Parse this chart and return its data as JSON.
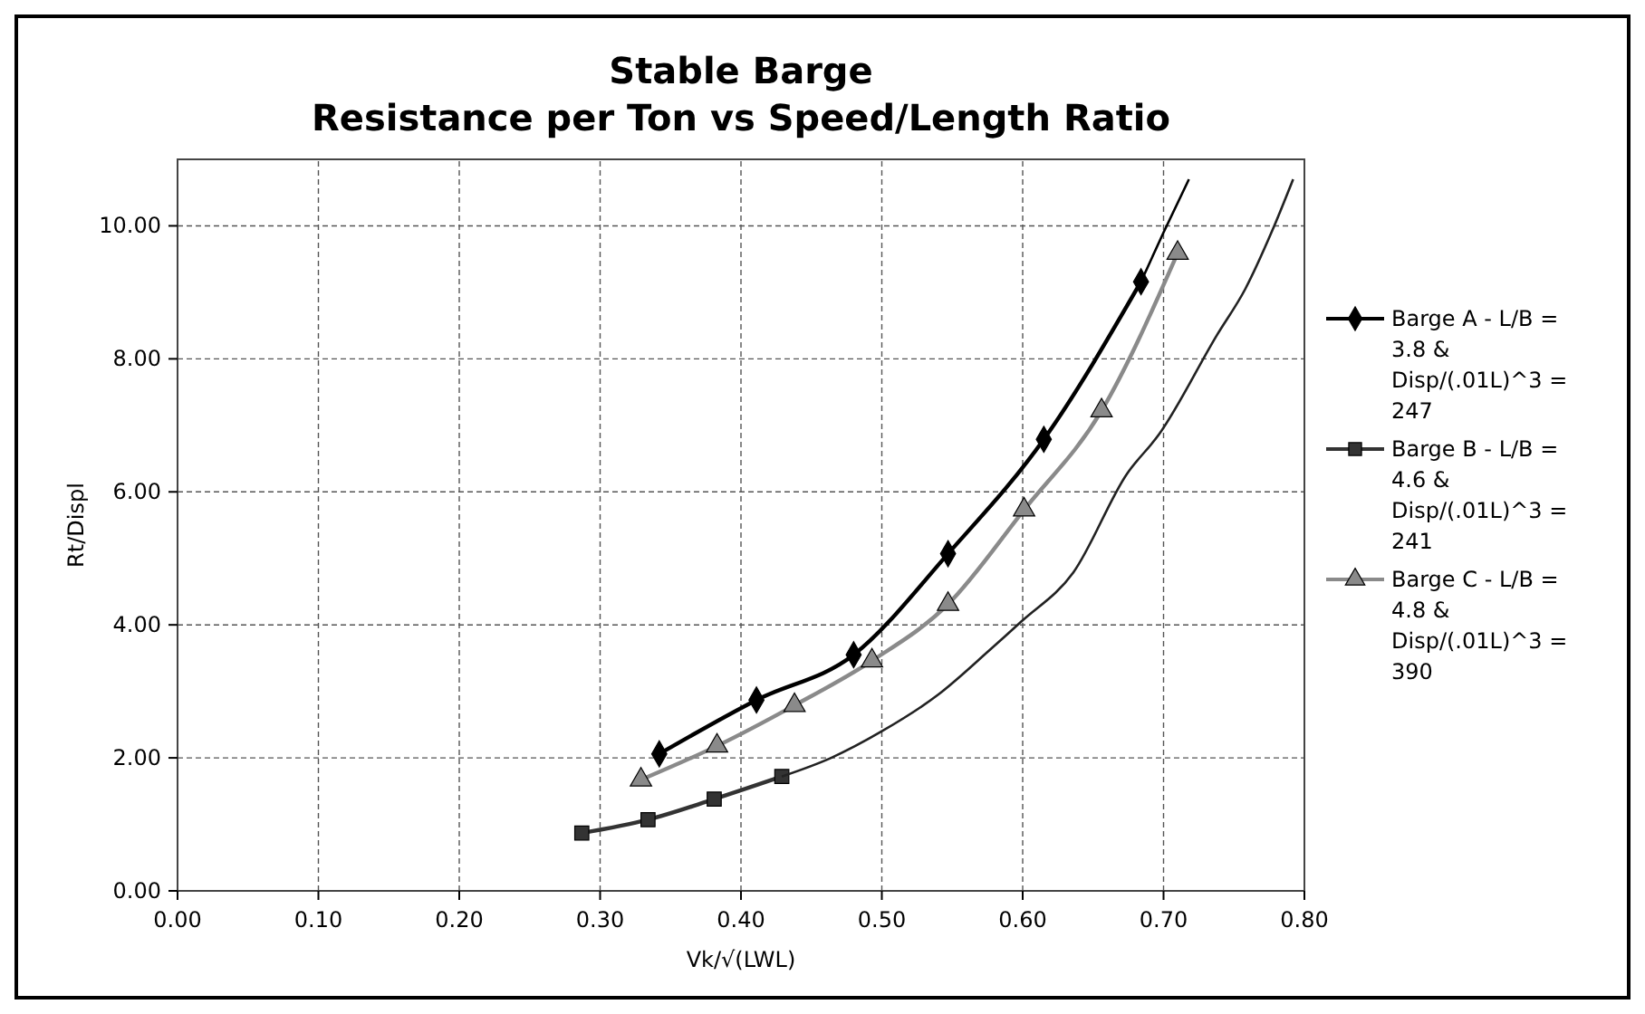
{
  "chart_data": {
    "type": "line",
    "title": "Stable Barge",
    "subtitle": "Resistance per Ton vs Speed/Length Ratio",
    "xlabel": "Vk/√(LWL)",
    "ylabel": "Rt/Displ",
    "xlim": [
      0,
      0.8
    ],
    "xticks": [
      {
        "value": 0,
        "label": "0.00"
      },
      {
        "value": 0.1,
        "label": "0.10"
      },
      {
        "value": 0.2,
        "label": "0.20"
      },
      {
        "value": 0.3,
        "label": "0.30"
      },
      {
        "value": 0.4,
        "label": "0.40"
      },
      {
        "value": 0.5,
        "label": "0.50"
      },
      {
        "value": 0.6,
        "label": "0.60"
      },
      {
        "value": 0.7,
        "label": "0.70"
      },
      {
        "value": 0.8,
        "label": "0.80"
      }
    ],
    "ylim": [
      0,
      11
    ],
    "yticks": [
      {
        "value": 0,
        "label": "0.00"
      },
      {
        "value": 2,
        "label": "2.00"
      },
      {
        "value": 4,
        "label": "4.00"
      },
      {
        "value": 6,
        "label": "6.00"
      },
      {
        "value": 8,
        "label": "8.00"
      },
      {
        "value": 10,
        "label": "10.00"
      }
    ],
    "grid": true,
    "legend": "right",
    "line_style": "solid",
    "series": [
      {
        "name": "Barge A - L/B = 3.8  & Disp/(.01L)^3 = 247",
        "color": "#000000",
        "marker": "diamond",
        "x": [
          0.342,
          0.411,
          0.48,
          0.547,
          0.615,
          0.684
        ],
        "values": [
          2.06,
          2.87,
          3.55,
          5.07,
          6.79,
          9.16
        ]
      },
      {
        "name": "Barge B - L/B = 4.6  & Disp/(.01L)^3 = 241",
        "color": "#333333",
        "marker": "square",
        "x": [
          0.287,
          0.334,
          0.381,
          0.429
        ],
        "values": [
          0.87,
          1.07,
          1.38,
          1.72
        ]
      },
      {
        "name": "Barge C - L/B = 4.8  & Disp/(.01L)^3 = 390",
        "color": "#8a8a8a",
        "marker": "triangle",
        "x": [
          0.329,
          0.383,
          0.438,
          0.493,
          0.547,
          0.601,
          0.656,
          0.71
        ],
        "values": [
          1.67,
          2.18,
          2.79,
          3.46,
          4.31,
          5.73,
          7.22,
          9.59
        ]
      },
      {
        "color": "#000000",
        "marker": "none",
        "x": [
          0.684,
          0.7,
          0.718
        ],
        "values": [
          9.16,
          9.9,
          10.7
        ]
      },
      {
        "color": "#222222",
        "marker": "none",
        "x": [
          0.429,
          0.464,
          0.5,
          0.54,
          0.576,
          0.599,
          0.636,
          0.674,
          0.697,
          0.738,
          0.758,
          0.777,
          0.792
        ],
        "values": [
          1.72,
          2.0,
          2.4,
          2.95,
          3.61,
          4.05,
          4.79,
          6.27,
          6.87,
          8.36,
          9.05,
          9.92,
          10.7
        ]
      }
    ]
  }
}
